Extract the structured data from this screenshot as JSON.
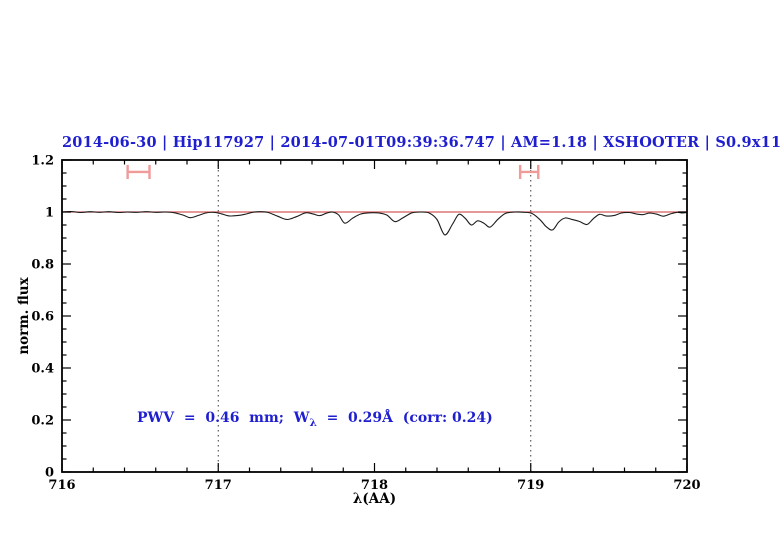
{
  "chart_data": {
    "type": "line",
    "title": "2014-06-30 | Hip117927 | 2014-07-01T09:39:36.747 | AM=1.18 | XSHOOTER | S0.9x11",
    "title_color": "#1f1fd0",
    "xlabel": "λ(AA)",
    "ylabel": "norm. flux",
    "xlim": [
      716,
      720
    ],
    "ylim": [
      0,
      1.2
    ],
    "x_major_ticks": [
      716,
      717,
      718,
      719,
      720
    ],
    "x_tick_labels": [
      "716",
      "717",
      "718",
      "719",
      "720"
    ],
    "x_minor_step": 0.2,
    "y_major_ticks": [
      0,
      0.2,
      0.4,
      0.6,
      0.8,
      1.0,
      1.2
    ],
    "y_tick_labels": [
      "0",
      "0.2",
      "0.4",
      "0.6",
      "0.8",
      "1",
      "1.2"
    ],
    "y_minor_step": 0.05,
    "legend": "none",
    "grid": "off",
    "guide_lines_x": [
      717,
      719
    ],
    "guide_line_color": "#3a3a3a",
    "continuum": {
      "y": 1.0,
      "color": "#d85c5c"
    },
    "spectrum_color": "#1c1c1c",
    "range_markers": {
      "color": "#f09a9a",
      "items": [
        {
          "x_center": 716.49,
          "half_width": 0.07,
          "y": 1.154,
          "cap_half_height": 0.027
        },
        {
          "x_center": 718.99,
          "half_width": 0.058,
          "y": 1.154,
          "cap_half_height": 0.027
        }
      ]
    },
    "annotation": {
      "pre": "PWV  =  0.46  mm;  W",
      "sub": "λ",
      "post": "  =  0.29Å  (corr: 0.24)",
      "x": 716.48,
      "y_flux": 0.205,
      "color": "#1f1fd0"
    },
    "spectrum_points": [
      [
        716.0,
        1.0
      ],
      [
        716.06,
        1.002
      ],
      [
        716.12,
        0.998
      ],
      [
        716.18,
        1.001
      ],
      [
        716.24,
        0.999
      ],
      [
        716.3,
        1.001
      ],
      [
        716.36,
        0.998
      ],
      [
        716.42,
        1.0
      ],
      [
        716.48,
        0.999
      ],
      [
        716.54,
        1.001
      ],
      [
        716.6,
        0.999
      ],
      [
        716.66,
        1.0
      ],
      [
        716.72,
        0.997
      ],
      [
        716.78,
        0.987
      ],
      [
        716.82,
        0.978
      ],
      [
        716.87,
        0.986
      ],
      [
        716.92,
        0.996
      ],
      [
        716.97,
        0.999
      ],
      [
        717.02,
        0.993
      ],
      [
        717.07,
        0.985
      ],
      [
        717.12,
        0.986
      ],
      [
        717.17,
        0.991
      ],
      [
        717.22,
        0.999
      ],
      [
        717.27,
        1.001
      ],
      [
        717.32,
        0.998
      ],
      [
        717.38,
        0.984
      ],
      [
        717.44,
        0.971
      ],
      [
        717.5,
        0.982
      ],
      [
        717.56,
        0.997
      ],
      [
        717.61,
        0.992
      ],
      [
        717.65,
        0.986
      ],
      [
        717.69,
        0.995
      ],
      [
        717.73,
        1.0
      ],
      [
        717.77,
        0.989
      ],
      [
        717.81,
        0.957
      ],
      [
        717.86,
        0.976
      ],
      [
        717.91,
        0.992
      ],
      [
        717.97,
        0.997
      ],
      [
        718.03,
        0.996
      ],
      [
        718.08,
        0.988
      ],
      [
        718.13,
        0.963
      ],
      [
        718.18,
        0.977
      ],
      [
        718.24,
        0.997
      ],
      [
        718.3,
        1.0
      ],
      [
        718.35,
        0.996
      ],
      [
        718.4,
        0.971
      ],
      [
        718.45,
        0.912
      ],
      [
        718.5,
        0.954
      ],
      [
        718.54,
        0.991
      ],
      [
        718.58,
        0.976
      ],
      [
        718.62,
        0.95
      ],
      [
        718.66,
        0.966
      ],
      [
        718.7,
        0.957
      ],
      [
        718.74,
        0.942
      ],
      [
        718.79,
        0.972
      ],
      [
        718.84,
        0.995
      ],
      [
        718.9,
        1.0
      ],
      [
        718.96,
        0.999
      ],
      [
        719.01,
        0.994
      ],
      [
        719.06,
        0.97
      ],
      [
        719.1,
        0.943
      ],
      [
        719.14,
        0.931
      ],
      [
        719.18,
        0.962
      ],
      [
        719.22,
        0.977
      ],
      [
        719.26,
        0.972
      ],
      [
        719.31,
        0.964
      ],
      [
        719.36,
        0.952
      ],
      [
        719.4,
        0.974
      ],
      [
        719.44,
        0.991
      ],
      [
        719.48,
        0.985
      ],
      [
        719.53,
        0.986
      ],
      [
        719.58,
        0.996
      ],
      [
        719.63,
        0.998
      ],
      [
        719.68,
        0.992
      ],
      [
        719.72,
        0.99
      ],
      [
        719.76,
        0.996
      ],
      [
        719.81,
        0.991
      ],
      [
        719.85,
        0.984
      ],
      [
        719.9,
        0.994
      ],
      [
        719.94,
        0.999
      ],
      [
        719.97,
        0.996
      ],
      [
        720.0,
        0.998
      ]
    ]
  }
}
